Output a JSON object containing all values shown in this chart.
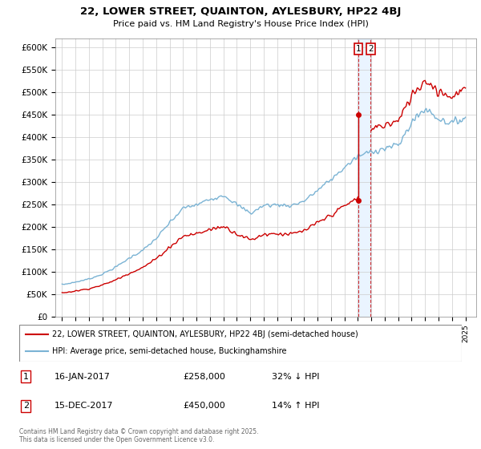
{
  "title": "22, LOWER STREET, QUAINTON, AYLESBURY, HP22 4BJ",
  "subtitle": "Price paid vs. HM Land Registry's House Price Index (HPI)",
  "ylim": [
    0,
    620000
  ],
  "yticks": [
    0,
    50000,
    100000,
    150000,
    200000,
    250000,
    300000,
    350000,
    400000,
    450000,
    500000,
    550000,
    600000
  ],
  "ytick_labels": [
    "£0",
    "£50K",
    "£100K",
    "£150K",
    "£200K",
    "£250K",
    "£300K",
    "£350K",
    "£400K",
    "£450K",
    "£500K",
    "£550K",
    "£600K"
  ],
  "hpi_color": "#7ab3d4",
  "price_color": "#cc0000",
  "vband_color": "#ddeeff",
  "t1_x": 2017.04,
  "t1_y": 258000,
  "t2_x": 2017.96,
  "t2_y": 450000,
  "transaction1": {
    "date": "16-JAN-2017",
    "price": 258000,
    "pct": "32% ↓ HPI",
    "label": "1"
  },
  "transaction2": {
    "date": "15-DEC-2017",
    "price": 450000,
    "pct": "14% ↑ HPI",
    "label": "2"
  },
  "legend1": "22, LOWER STREET, QUAINTON, AYLESBURY, HP22 4BJ (semi-detached house)",
  "legend2": "HPI: Average price, semi-detached house, Buckinghamshire",
  "footer": "Contains HM Land Registry data © Crown copyright and database right 2025.\nThis data is licensed under the Open Government Licence v3.0.",
  "xlim_left": 1994.5,
  "xlim_right": 2025.8
}
